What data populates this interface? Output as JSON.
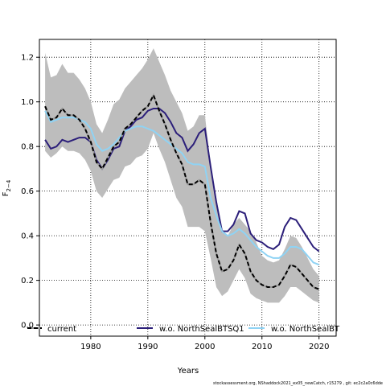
{
  "footnote": "stockassessment.org, NShaddock2021_ex05_newCatch, r15279 , git: ec2c2a0c6dde",
  "chart_data": {
    "type": "line",
    "xlabel": "Years",
    "ylabel": "F",
    "ylabel_sub": "2−4",
    "xlim": [
      1971,
      2023
    ],
    "ylim": [
      -0.05,
      1.28
    ],
    "x_ticks": [
      1980,
      1990,
      2000,
      2010,
      2020
    ],
    "y_ticks": [
      0.0,
      0.2,
      0.4,
      0.6,
      0.8,
      1.0,
      1.2
    ],
    "x_tick_labels": [
      "1980",
      "1990",
      "2000",
      "2010",
      "2020"
    ],
    "y_tick_labels": [
      "0.0",
      "0.2",
      "0.4",
      "0.6",
      "0.8",
      "1.0",
      "1.2"
    ],
    "grid": true,
    "legend_position": "bottom",
    "x": [
      1972,
      1973,
      1974,
      1975,
      1976,
      1977,
      1978,
      1979,
      1980,
      1981,
      1982,
      1983,
      1984,
      1985,
      1986,
      1987,
      1988,
      1989,
      1990,
      1991,
      1992,
      1993,
      1994,
      1995,
      1996,
      1997,
      1998,
      1999,
      2000,
      2001,
      2002,
      2003,
      2004,
      2005,
      2006,
      2007,
      2008,
      2009,
      2010,
      2011,
      2012,
      2013,
      2014,
      2015,
      2016,
      2017,
      2018,
      2019,
      2020
    ],
    "band": {
      "series": "current",
      "lower": [
        0.78,
        0.75,
        0.77,
        0.8,
        0.78,
        0.78,
        0.77,
        0.74,
        0.69,
        0.6,
        0.57,
        0.61,
        0.65,
        0.66,
        0.71,
        0.72,
        0.75,
        0.76,
        0.79,
        0.86,
        0.79,
        0.73,
        0.65,
        0.57,
        0.53,
        0.44,
        0.44,
        0.44,
        0.42,
        0.3,
        0.17,
        0.13,
        0.15,
        0.2,
        0.25,
        0.21,
        0.14,
        0.12,
        0.11,
        0.1,
        0.1,
        0.1,
        0.13,
        0.17,
        0.17,
        0.15,
        0.13,
        0.11,
        0.1
      ],
      "upper": [
        1.22,
        1.11,
        1.12,
        1.17,
        1.13,
        1.13,
        1.1,
        1.06,
        1.0,
        0.9,
        0.86,
        0.92,
        0.99,
        1.01,
        1.06,
        1.09,
        1.12,
        1.15,
        1.19,
        1.24,
        1.18,
        1.12,
        1.05,
        1.0,
        0.95,
        0.87,
        0.89,
        0.94,
        0.94,
        0.72,
        0.57,
        0.43,
        0.4,
        0.45,
        0.48,
        0.45,
        0.42,
        0.37,
        0.31,
        0.29,
        0.28,
        0.29,
        0.34,
        0.4,
        0.39,
        0.35,
        0.3,
        0.25,
        0.22
      ]
    },
    "series": [
      {
        "name": "current",
        "color": "#000000",
        "style": "dashed-on-gray",
        "values": [
          0.98,
          0.92,
          0.93,
          0.97,
          0.94,
          0.94,
          0.92,
          0.88,
          0.82,
          0.73,
          0.7,
          0.75,
          0.8,
          0.82,
          0.88,
          0.9,
          0.93,
          0.96,
          0.98,
          1.03,
          0.96,
          0.9,
          0.83,
          0.77,
          0.72,
          0.63,
          0.63,
          0.65,
          0.63,
          0.46,
          0.32,
          0.24,
          0.25,
          0.29,
          0.36,
          0.32,
          0.24,
          0.2,
          0.18,
          0.17,
          0.17,
          0.18,
          0.22,
          0.27,
          0.26,
          0.23,
          0.2,
          0.17,
          0.16
        ]
      },
      {
        "name": "w.o. NorthSealBTSQ1",
        "color": "#2c1f7a",
        "style": "solid",
        "values": [
          0.83,
          0.79,
          0.8,
          0.83,
          0.82,
          0.83,
          0.84,
          0.84,
          0.82,
          0.74,
          0.7,
          0.74,
          0.79,
          0.8,
          0.87,
          0.89,
          0.92,
          0.93,
          0.96,
          0.97,
          0.97,
          0.95,
          0.91,
          0.86,
          0.84,
          0.78,
          0.81,
          0.86,
          0.88,
          0.71,
          0.55,
          0.42,
          0.42,
          0.45,
          0.51,
          0.5,
          0.41,
          0.38,
          0.37,
          0.35,
          0.34,
          0.36,
          0.44,
          0.48,
          0.47,
          0.43,
          0.39,
          0.35,
          0.33
        ]
      },
      {
        "name": "w.o. NorthSealBT",
        "color": "#8fd3f4",
        "style": "solid",
        "values": [
          0.96,
          0.91,
          0.92,
          0.93,
          0.93,
          0.93,
          0.92,
          0.91,
          0.88,
          0.81,
          0.78,
          0.79,
          0.81,
          0.84,
          0.87,
          0.88,
          0.89,
          0.89,
          0.88,
          0.87,
          0.85,
          0.83,
          0.81,
          0.79,
          0.77,
          0.73,
          0.72,
          0.72,
          0.71,
          0.57,
          0.49,
          0.42,
          0.4,
          0.41,
          0.43,
          0.41,
          0.38,
          0.35,
          0.33,
          0.31,
          0.3,
          0.3,
          0.32,
          0.35,
          0.35,
          0.34,
          0.31,
          0.28,
          0.27
        ]
      }
    ]
  }
}
